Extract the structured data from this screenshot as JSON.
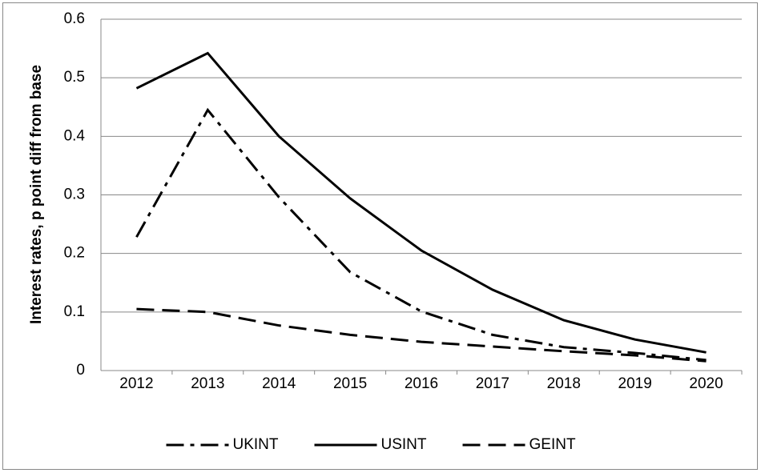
{
  "chart_data": {
    "type": "line",
    "y_label": "Interest rates, p point diff from base",
    "categories": [
      "2012",
      "2013",
      "2014",
      "2015",
      "2016",
      "2017",
      "2018",
      "2019",
      "2020"
    ],
    "series": [
      {
        "name": "UKINT",
        "color": "#000000",
        "dash": "dash-dot",
        "values": [
          0.228,
          0.445,
          0.296,
          0.168,
          0.101,
          0.061,
          0.04,
          0.03,
          0.018
        ]
      },
      {
        "name": "USINT",
        "color": "#000000",
        "dash": "solid",
        "values": [
          0.482,
          0.542,
          0.4,
          0.294,
          0.205,
          0.138,
          0.086,
          0.053,
          0.031
        ]
      },
      {
        "name": "GEINT",
        "color": "#000000",
        "dash": "dash",
        "values": [
          0.105,
          0.1,
          0.077,
          0.061,
          0.049,
          0.041,
          0.033,
          0.026,
          0.016
        ]
      }
    ],
    "ylim": [
      0,
      0.6
    ],
    "yticks": [
      0,
      0.1,
      0.2,
      0.3,
      0.4,
      0.5,
      0.6
    ],
    "grid": true,
    "legend": "bottom"
  }
}
